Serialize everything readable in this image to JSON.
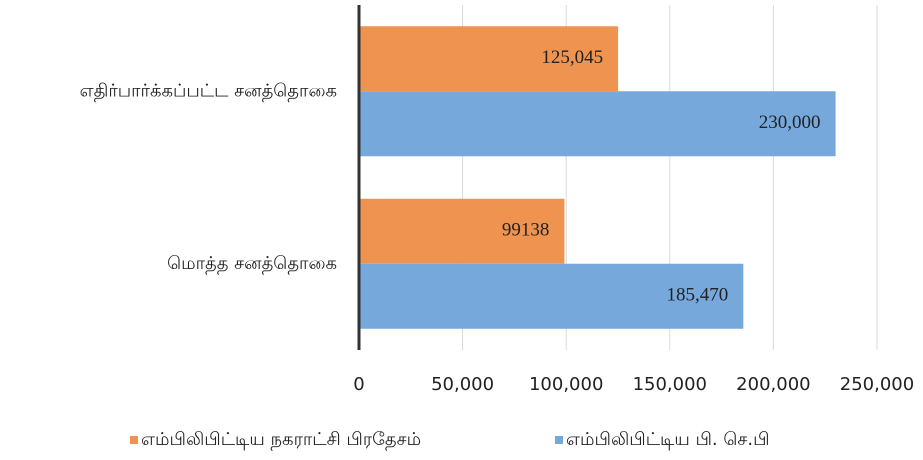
{
  "chart_data": {
    "type": "barh",
    "categories": [
      "எதிர்பார்க்கப்பட்ட சனத்தொகை",
      "மொத்த சனத்தொகை"
    ],
    "series": [
      {
        "name": "எம்பிலிபிட்டிய நகராட்சி பிரதேசம்",
        "color": "#ef9350",
        "values": [
          125045,
          99138
        ],
        "value_labels": [
          "125,045",
          "99138"
        ]
      },
      {
        "name": "எம்பிலிபிட்டிய பி. செ.பி",
        "color": "#76a8dc",
        "values": [
          230000,
          185470
        ],
        "value_labels": [
          "230,000",
          "185,470"
        ]
      }
    ],
    "xlim": [
      0,
      250000
    ],
    "xticks": [
      0,
      {
        "value": 50000,
        "label": "50,000"
      },
      {
        "value": 100000,
        "label": "100,000"
      },
      {
        "value": 150000,
        "label": "150,000"
      },
      {
        "value": 200000,
        "label": "200,000"
      },
      {
        "value": 250000,
        "label": "250,000"
      }
    ],
    "grid": true,
    "legend": "bottom"
  }
}
